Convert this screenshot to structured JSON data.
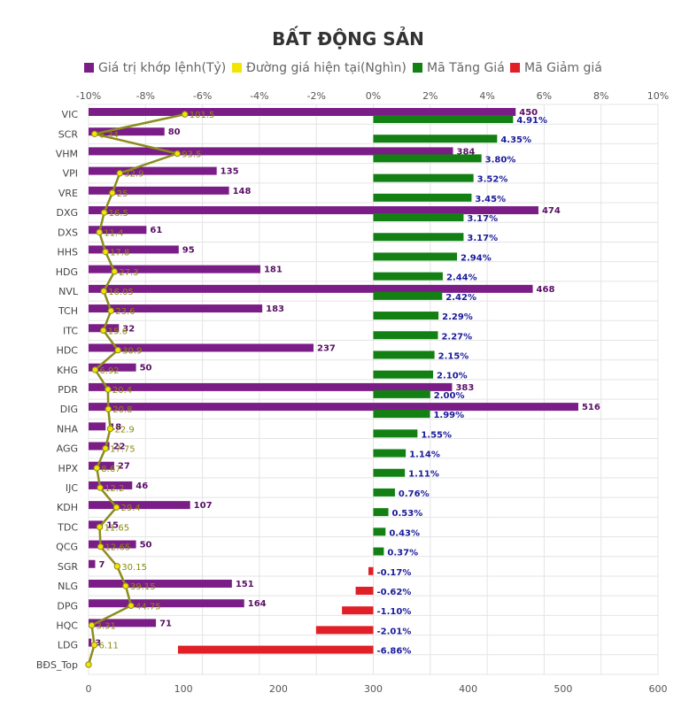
{
  "chart_data": {
    "type": "bar",
    "title": "BẤT ĐỘNG SẢN",
    "legend": [
      {
        "name": "Giá trị khớp lệnh(Tỷ)",
        "color": "#7b1d87"
      },
      {
        "name": "Đường giá hiện tại(Nghìn)",
        "color": "#f2e600"
      },
      {
        "name": "Mã Tăng Giá",
        "color": "#138013"
      },
      {
        "name": "Mã Giảm giá",
        "color": "#e01f26"
      }
    ],
    "legend_position": "top",
    "grid": true,
    "top_axis": {
      "range": [
        -10,
        10
      ],
      "ticks": [
        "-10%",
        "-8%",
        "-6%",
        "-4%",
        "-2%",
        "0%",
        "2%",
        "4%",
        "6%",
        "8%",
        "10%"
      ]
    },
    "bottom_axis": {
      "range": [
        0,
        600
      ],
      "ticks": [
        "0",
        "100",
        "200",
        "300",
        "400",
        "500",
        "600"
      ]
    },
    "categories": [
      "VIC",
      "SCR",
      "VHM",
      "VPI",
      "VRE",
      "DXG",
      "DXS",
      "HHS",
      "HDG",
      "NVL",
      "TCH",
      "ITC",
      "HDC",
      "KHG",
      "PDR",
      "DIG",
      "NHA",
      "AGG",
      "HPX",
      "IJC",
      "KDH",
      "TDC",
      "QCG",
      "SGR",
      "NLG",
      "DPG",
      "HQC",
      "LDG",
      "BĐS_Top"
    ],
    "series": [
      {
        "name": "Giá trị khớp lệnh(Tỷ)",
        "color": "#7b1d87",
        "values": [
          450,
          80,
          384,
          135,
          148,
          474,
          61,
          95,
          181,
          468,
          183,
          32,
          237,
          50,
          383,
          516,
          18,
          22,
          27,
          46,
          107,
          15,
          50,
          7,
          151,
          164,
          71,
          3,
          null
        ],
        "labels": [
          "450",
          "80",
          "384",
          "135",
          "148",
          "474",
          "61",
          "95",
          "181",
          "468",
          "183",
          "32",
          "237",
          "50",
          "383",
          "516",
          "18",
          "22",
          "27",
          "46",
          "107",
          "15",
          "50",
          "7",
          "151",
          "164",
          "71",
          "3",
          ""
        ]
      },
      {
        "name": "Đường giá hiện tại(Nghìn)",
        "color": "#f2e600",
        "line_color": "#8c8c1e",
        "values": [
          101.5,
          6.34,
          93.5,
          32.9,
          25,
          16.5,
          11.4,
          17.8,
          27.3,
          16.05,
          23.6,
          15.6,
          30.9,
          6.92,
          20.4,
          20.8,
          22.9,
          17.75,
          8.67,
          12.2,
          29.4,
          11.65,
          12.65,
          30.15,
          39.15,
          44.75,
          3.31,
          6.11,
          0
        ],
        "labels": [
          "101.5",
          "6.34",
          "93.5",
          "32.9",
          "25",
          "16.5",
          "11.4",
          "17.8",
          "27.3",
          "16.05",
          "23.6",
          "15.6",
          "30.9",
          "6.92",
          "20.4",
          "20.8",
          "22.9",
          "17.75",
          "8.67",
          "12.2",
          "29.4",
          "11.65",
          "12.65",
          "30.15",
          "39.15",
          "44.75",
          "3.31",
          "6.11",
          ""
        ]
      },
      {
        "name": "Mã Tăng Giá / Mã Giảm giá",
        "color_up": "#138013",
        "color_down": "#e01f26",
        "values": [
          4.91,
          4.35,
          3.8,
          3.52,
          3.45,
          3.17,
          3.17,
          2.94,
          2.44,
          2.42,
          2.29,
          2.27,
          2.15,
          2.1,
          2.0,
          1.99,
          1.55,
          1.14,
          1.11,
          0.76,
          0.53,
          0.43,
          0.37,
          -0.17,
          -0.62,
          -1.1,
          -2.01,
          -6.86,
          null
        ],
        "labels": [
          "4.91%",
          "4.35%",
          "3.80%",
          "3.52%",
          "3.45%",
          "3.17%",
          "3.17%",
          "2.94%",
          "2.44%",
          "2.42%",
          "2.29%",
          "2.27%",
          "2.15%",
          "2.10%",
          "2.00%",
          "1.99%",
          "1.55%",
          "1.14%",
          "1.11%",
          "0.76%",
          "0.53%",
          "0.43%",
          "0.37%",
          "-0.17%",
          "-0.62%",
          "-1.10%",
          "-2.01%",
          "-6.86%",
          ""
        ]
      }
    ]
  }
}
